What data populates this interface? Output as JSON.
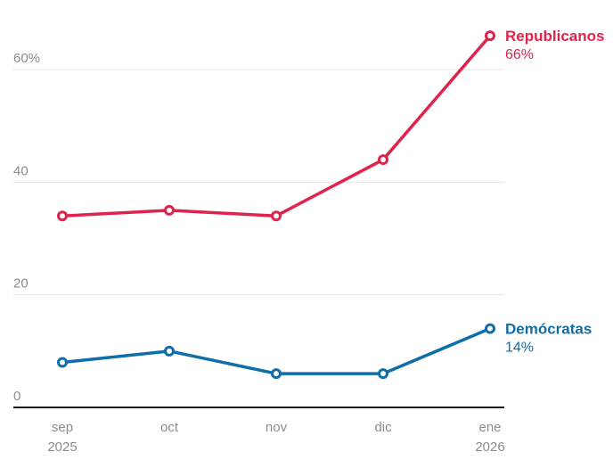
{
  "chart_data": {
    "type": "line",
    "categories": [
      {
        "label": "sep",
        "sublabel": "2025"
      },
      {
        "label": "oct",
        "sublabel": ""
      },
      {
        "label": "nov",
        "sublabel": ""
      },
      {
        "label": "dic",
        "sublabel": ""
      },
      {
        "label": "ene",
        "sublabel": "2026"
      }
    ],
    "series": [
      {
        "name": "Republicanos",
        "color": "#e0234b",
        "values": [
          34,
          35,
          34,
          44,
          66
        ],
        "end_label": "Republicanos",
        "end_value_label": "66%"
      },
      {
        "name": "Demócratas",
        "color": "#0f6da8",
        "values": [
          8,
          10,
          6,
          6,
          14
        ],
        "end_label": "Demócratas",
        "end_value_label": "14%"
      }
    ],
    "y_ticks": [
      {
        "value": 0,
        "label": "0"
      },
      {
        "value": 20,
        "label": "20"
      },
      {
        "value": 40,
        "label": "40"
      },
      {
        "value": 60,
        "label": "60%"
      }
    ],
    "ylim": [
      0,
      72
    ],
    "xlabel": "",
    "ylabel": "",
    "grid": "horizontal-on",
    "legend_position": "end-of-line",
    "colors": {
      "gridline": "#e4e4e4",
      "axis": "#1a1a1a",
      "tick_text": "#8c8c8c",
      "background": "#ffffff",
      "marker_fill": "#ffffff"
    }
  }
}
